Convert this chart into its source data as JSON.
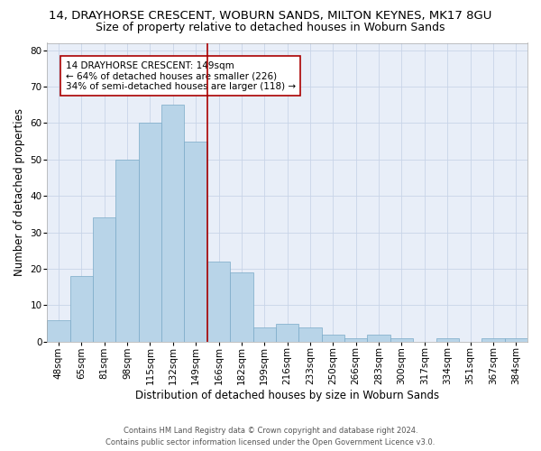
{
  "title1": "14, DRAYHORSE CRESCENT, WOBURN SANDS, MILTON KEYNES, MK17 8GU",
  "title2": "Size of property relative to detached houses in Woburn Sands",
  "xlabel": "Distribution of detached houses by size in Woburn Sands",
  "ylabel": "Number of detached properties",
  "footer1": "Contains HM Land Registry data © Crown copyright and database right 2024.",
  "footer2": "Contains public sector information licensed under the Open Government Licence v3.0.",
  "annotation_line1": "14 DRAYHORSE CRESCENT: 149sqm",
  "annotation_line2": "← 64% of detached houses are smaller (226)",
  "annotation_line3": "34% of semi-detached houses are larger (118) →",
  "bar_color": "#b8d4e8",
  "bar_edge_color": "#7aaac8",
  "vline_color": "#aa0000",
  "grid_color": "#c8d4e8",
  "background_color": "#e8eef8",
  "categories": [
    "48sqm",
    "65sqm",
    "81sqm",
    "98sqm",
    "115sqm",
    "132sqm",
    "149sqm",
    "166sqm",
    "182sqm",
    "199sqm",
    "216sqm",
    "233sqm",
    "250sqm",
    "266sqm",
    "283sqm",
    "300sqm",
    "317sqm",
    "334sqm",
    "351sqm",
    "367sqm",
    "384sqm"
  ],
  "values": [
    6,
    18,
    34,
    50,
    60,
    65,
    55,
    22,
    19,
    4,
    5,
    4,
    2,
    1,
    2,
    1,
    0,
    1,
    0,
    1,
    1
  ],
  "ylim": [
    0,
    82
  ],
  "yticks": [
    0,
    10,
    20,
    30,
    40,
    50,
    60,
    70,
    80
  ],
  "vline_x_index": 6,
  "title1_fontsize": 9.5,
  "title2_fontsize": 9,
  "xlabel_fontsize": 8.5,
  "ylabel_fontsize": 8.5,
  "tick_fontsize": 7.5,
  "annotation_fontsize": 7.5,
  "footer_fontsize": 6
}
